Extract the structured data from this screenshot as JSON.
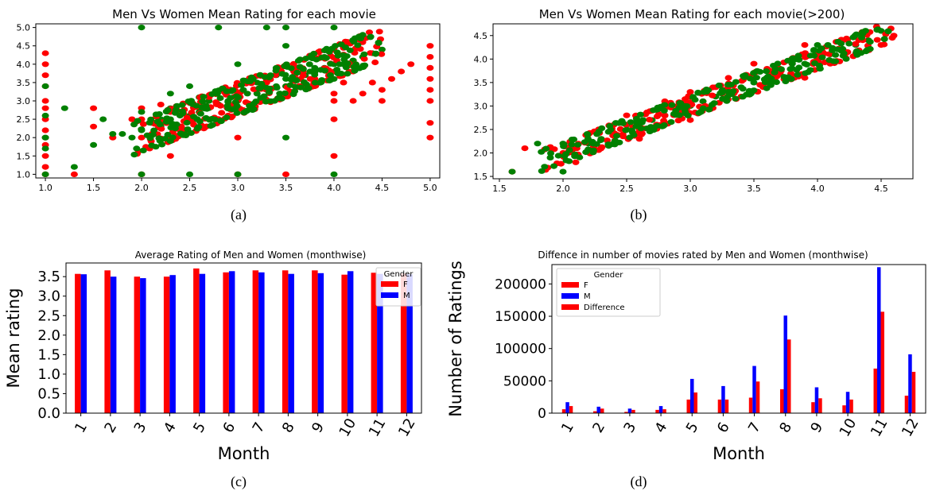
{
  "chart_data": [
    {
      "type": "scatter",
      "title": "Men Vs Women Mean Rating for each movie",
      "caption": "(a)",
      "xlim": [
        0.9,
        5.1
      ],
      "ylim": [
        0.9,
        5.1
      ],
      "x_ticks": [
        "1.0",
        "1.5",
        "2.0",
        "2.5",
        "3.0",
        "3.5",
        "4.0",
        "4.5",
        "5.0"
      ],
      "y_ticks": [
        "1.0",
        "1.5",
        "2.0",
        "2.5",
        "3.0",
        "3.5",
        "4.0",
        "4.5",
        "5.0"
      ],
      "colors": {
        "F": "#ff0000",
        "M": "#008000"
      },
      "series": [
        {
          "color": "#ff0000",
          "x": [
            1.0,
            1.0,
            1.0,
            1.0,
            1.0,
            1.0,
            1.0,
            1.0,
            1.0,
            1.0,
            1.0,
            1.0,
            1.0,
            1.3,
            1.5,
            1.5,
            1.7,
            1.9,
            2.0,
            2.0,
            2.0,
            2.2,
            2.3,
            2.3,
            2.5,
            2.6,
            2.7,
            2.8,
            2.9,
            3.0,
            3.0,
            3.0,
            3.2,
            3.3,
            3.5,
            3.5,
            3.6,
            3.7,
            3.8,
            4.0,
            4.0,
            4.0,
            4.0,
            4.1,
            4.2,
            4.3,
            4.4,
            4.5,
            4.5,
            4.6,
            4.7,
            4.8,
            5.0,
            5.0,
            5.0,
            5.0,
            5.0,
            5.0,
            5.0,
            5.0,
            2.1,
            2.4,
            2.9,
            3.3,
            3.8,
            4.2
          ],
          "y": [
            1.0,
            1.2,
            1.5,
            1.8,
            2.0,
            2.2,
            2.5,
            2.8,
            3.0,
            3.4,
            3.7,
            4.0,
            4.3,
            1.0,
            2.3,
            2.8,
            2.0,
            2.5,
            1.0,
            2.0,
            2.8,
            2.9,
            1.5,
            2.7,
            2.5,
            2.8,
            3.0,
            2.9,
            3.0,
            1.0,
            2.0,
            3.2,
            3.3,
            3.5,
            1.0,
            3.4,
            3.6,
            3.7,
            3.6,
            1.5,
            2.5,
            3.0,
            3.2,
            3.5,
            3.0,
            3.2,
            3.5,
            3.0,
            3.3,
            3.6,
            3.8,
            4.0,
            2.0,
            2.4,
            3.0,
            3.3,
            3.6,
            3.9,
            4.2,
            4.5,
            1.9,
            2.2,
            2.6,
            3.0,
            3.4,
            3.8
          ]
        },
        {
          "color": "#008000",
          "x": [
            1.0,
            1.0,
            1.0,
            1.0,
            1.0,
            1.2,
            1.3,
            1.5,
            1.6,
            1.8,
            1.9,
            2.0,
            2.0,
            2.0,
            2.1,
            2.2,
            2.3,
            2.3,
            2.4,
            2.5,
            2.5,
            2.5,
            2.6,
            2.7,
            2.8,
            2.8,
            2.9,
            3.0,
            3.0,
            3.0,
            3.0,
            3.1,
            3.2,
            3.3,
            3.4,
            3.5,
            3.5,
            3.5,
            3.5,
            3.6,
            3.7,
            3.8,
            3.9,
            4.0,
            4.0,
            4.0,
            4.1,
            4.2,
            4.3,
            4.4,
            4.5,
            2.0,
            2.3,
            2.7,
            3.2,
            3.3,
            3.5,
            3.8,
            4.0,
            4.2,
            1.7,
            2.2,
            2.6,
            3.4,
            3.9
          ],
          "y": [
            1.0,
            1.7,
            2.0,
            2.6,
            3.4,
            2.8,
            1.2,
            1.8,
            2.5,
            2.1,
            2.0,
            1.0,
            2.2,
            5.0,
            2.4,
            2.3,
            2.5,
            3.2,
            2.6,
            1.0,
            2.6,
            3.4,
            2.7,
            2.8,
            2.9,
            5.0,
            3.0,
            1.0,
            3.0,
            3.1,
            4.0,
            3.2,
            3.2,
            3.3,
            3.4,
            2.0,
            3.4,
            3.6,
            5.0,
            3.6,
            3.7,
            3.8,
            3.9,
            1.0,
            4.0,
            5.0,
            4.0,
            4.1,
            4.2,
            4.3,
            4.4,
            2.7,
            2.8,
            3.0,
            3.5,
            5.0,
            4.5,
            3.9,
            3.6,
            4.1,
            2.1,
            2.5,
            3.1,
            3.7,
            4.2
          ]
        }
      ]
    },
    {
      "type": "scatter",
      "title": "Men Vs Women Mean Rating for each movie(>200)",
      "caption": "(b)",
      "xlim": [
        1.45,
        4.75
      ],
      "ylim": [
        1.45,
        4.75
      ],
      "x_ticks": [
        "1.5",
        "2.0",
        "2.5",
        "3.0",
        "3.5",
        "4.0",
        "4.5"
      ],
      "y_ticks": [
        "1.5",
        "2.0",
        "2.5",
        "3.0",
        "3.5",
        "4.0",
        "4.5"
      ],
      "colors": {
        "F": "#ff0000",
        "M": "#008000"
      },
      "series": [
        {
          "color": "#ff0000",
          "x": [
            1.6,
            1.7,
            1.9,
            2.0,
            2.1,
            2.2,
            2.3,
            2.4,
            2.5,
            2.6,
            2.7,
            2.8,
            2.9,
            3.0,
            3.1,
            3.2,
            3.3,
            3.4,
            3.5,
            3.6,
            3.7,
            3.8,
            3.9,
            4.0,
            4.1,
            4.2,
            4.3,
            4.4,
            4.5,
            4.6,
            2.6,
            3.0,
            3.5,
            3.9
          ],
          "y": [
            1.6,
            2.1,
            2.1,
            2.0,
            1.8,
            2.4,
            2.3,
            2.6,
            2.8,
            2.5,
            2.9,
            3.1,
            3.0,
            3.3,
            3.1,
            3.4,
            3.6,
            3.2,
            3.7,
            3.5,
            3.8,
            3.9,
            3.6,
            4.1,
            3.9,
            4.2,
            4.1,
            4.4,
            4.3,
            4.5,
            2.3,
            2.7,
            3.9,
            4.3
          ]
        },
        {
          "color": "#008000",
          "x": [
            1.6,
            1.8,
            1.9,
            2.0,
            2.1,
            2.2,
            2.3,
            2.4,
            2.5,
            2.6,
            2.7,
            2.8,
            2.9,
            3.0,
            3.1,
            3.2,
            3.3,
            3.4,
            3.5,
            3.6,
            3.7,
            3.8,
            3.9,
            4.0,
            4.1,
            4.2,
            4.3,
            4.4,
            4.5,
            2.0,
            2.5,
            3.0,
            3.5,
            4.0
          ],
          "y": [
            1.6,
            2.2,
            1.9,
            1.6,
            2.1,
            2.2,
            2.3,
            2.4,
            2.5,
            2.6,
            2.7,
            2.8,
            2.9,
            3.0,
            3.1,
            3.2,
            3.3,
            3.4,
            3.5,
            3.6,
            3.7,
            3.8,
            3.9,
            4.0,
            4.1,
            4.2,
            4.3,
            4.4,
            4.6,
            2.2,
            2.6,
            3.2,
            3.6,
            4.3
          ]
        }
      ]
    },
    {
      "type": "bar",
      "title": "Average Rating of Men and Women (monthwise)",
      "caption": "(c)",
      "xlabel": "Month",
      "ylabel": "Mean rating",
      "ylim": [
        0,
        3.85
      ],
      "y_ticks": [
        "0.0",
        "0.5",
        "1.0",
        "1.5",
        "2.0",
        "2.5",
        "3.0",
        "3.5"
      ],
      "categories": [
        "1",
        "2",
        "3",
        "4",
        "5",
        "6",
        "7",
        "8",
        "9",
        "10",
        "11",
        "12"
      ],
      "legend_title": "Gender",
      "legend_position": "top-right",
      "series": [
        {
          "name": "F",
          "color": "#ff0000",
          "values": [
            3.57,
            3.66,
            3.5,
            3.5,
            3.71,
            3.61,
            3.66,
            3.66,
            3.66,
            3.55,
            3.6,
            3.58
          ]
        },
        {
          "name": "M",
          "color": "#0000ff",
          "values": [
            3.56,
            3.5,
            3.46,
            3.54,
            3.57,
            3.64,
            3.61,
            3.57,
            3.59,
            3.64,
            3.57,
            3.56
          ]
        }
      ]
    },
    {
      "type": "bar",
      "title": "Diffence in number of movies rated by Men and Women (monthwise)",
      "caption": "(d)",
      "xlabel": "Month",
      "ylabel": "Number of Ratings",
      "ylim": [
        0,
        230000
      ],
      "y_ticks": [
        "0",
        "50000",
        "100000",
        "150000",
        "200000"
      ],
      "categories": [
        "1",
        "2",
        "3",
        "4",
        "5",
        "6",
        "7",
        "8",
        "9",
        "10",
        "11",
        "12"
      ],
      "legend_title": "Gender",
      "legend_position": "top-left",
      "series": [
        {
          "name": "F",
          "color": "#ff0000",
          "values": [
            6000,
            3000,
            2000,
            5000,
            21000,
            21000,
            24000,
            37000,
            17000,
            12000,
            69000,
            27000
          ]
        },
        {
          "name": "M",
          "color": "#0000ff",
          "values": [
            17000,
            10000,
            7000,
            11000,
            53000,
            42000,
            73000,
            151000,
            40000,
            33000,
            226000,
            91000
          ]
        },
        {
          "name": "Difference",
          "color": "#ff0000",
          "values": [
            11000,
            7000,
            5000,
            6000,
            32000,
            21000,
            49000,
            114000,
            23000,
            21000,
            157000,
            64000
          ]
        }
      ]
    }
  ]
}
